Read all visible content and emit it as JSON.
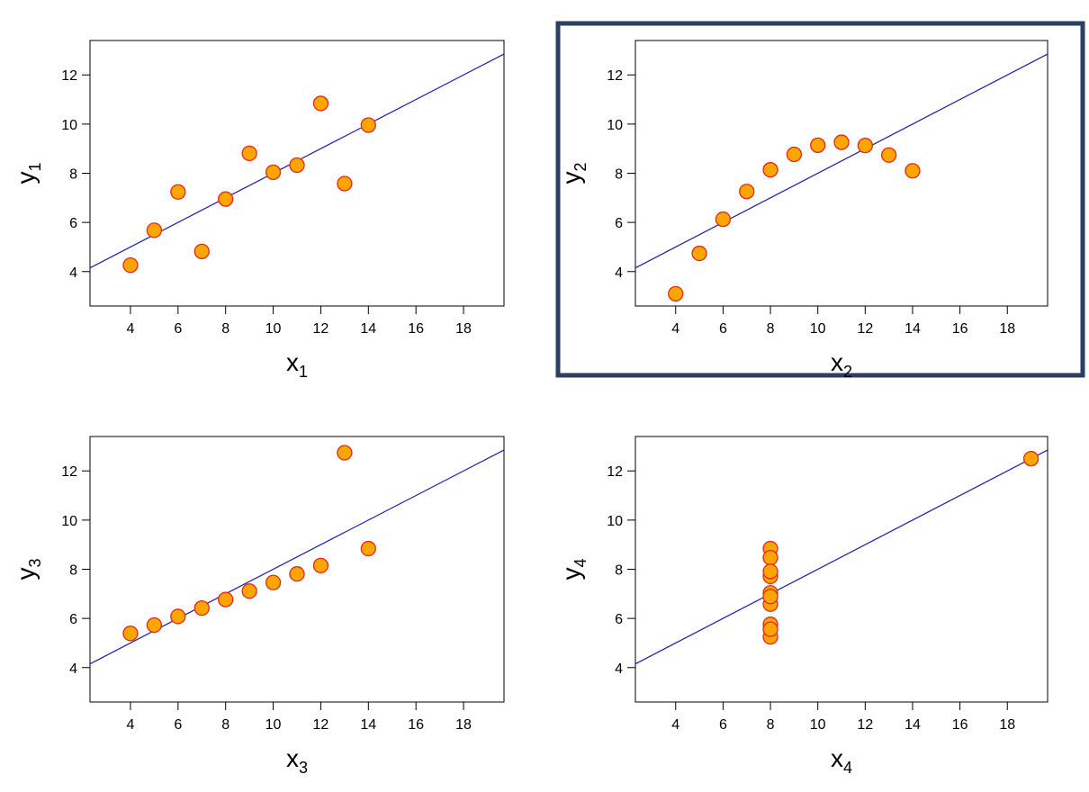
{
  "chart_data": [
    {
      "type": "scatter",
      "xlabel": "x",
      "xlabel_sub": "1",
      "ylabel": "y",
      "ylabel_sub": "1",
      "xlim": [
        2.3,
        19.7
      ],
      "ylim": [
        2.6,
        13.4
      ],
      "xticks": [
        "4",
        "6",
        "8",
        "10",
        "12",
        "14",
        "16",
        "18"
      ],
      "yticks": [
        "4",
        "6",
        "8",
        "10",
        "12"
      ],
      "highlighted": false,
      "points": [
        [
          10,
          8.04
        ],
        [
          8,
          6.95
        ],
        [
          13,
          7.58
        ],
        [
          9,
          8.81
        ],
        [
          11,
          8.33
        ],
        [
          14,
          9.96
        ],
        [
          6,
          7.24
        ],
        [
          4,
          4.26
        ],
        [
          12,
          10.84
        ],
        [
          7,
          4.82
        ],
        [
          5,
          5.68
        ]
      ],
      "fit": {
        "intercept": 3.0,
        "slope": 0.5
      }
    },
    {
      "type": "scatter",
      "xlabel": "x",
      "xlabel_sub": "2",
      "ylabel": "y",
      "ylabel_sub": "2",
      "xlim": [
        2.3,
        19.7
      ],
      "ylim": [
        2.6,
        13.4
      ],
      "xticks": [
        "4",
        "6",
        "8",
        "10",
        "12",
        "14",
        "16",
        "18"
      ],
      "yticks": [
        "4",
        "6",
        "8",
        "10",
        "12"
      ],
      "highlighted": true,
      "points": [
        [
          10,
          9.14
        ],
        [
          8,
          8.14
        ],
        [
          13,
          8.74
        ],
        [
          9,
          8.77
        ],
        [
          11,
          9.26
        ],
        [
          14,
          8.1
        ],
        [
          6,
          6.13
        ],
        [
          4,
          3.1
        ],
        [
          12,
          9.13
        ],
        [
          7,
          7.26
        ],
        [
          5,
          4.74
        ]
      ],
      "fit": {
        "intercept": 3.0,
        "slope": 0.5
      }
    },
    {
      "type": "scatter",
      "xlabel": "x",
      "xlabel_sub": "3",
      "ylabel": "y",
      "ylabel_sub": "3",
      "xlim": [
        2.3,
        19.7
      ],
      "ylim": [
        2.6,
        13.4
      ],
      "xticks": [
        "4",
        "6",
        "8",
        "10",
        "12",
        "14",
        "16",
        "18"
      ],
      "yticks": [
        "4",
        "6",
        "8",
        "10",
        "12"
      ],
      "highlighted": false,
      "points": [
        [
          10,
          7.46
        ],
        [
          8,
          6.77
        ],
        [
          13,
          12.74
        ],
        [
          9,
          7.11
        ],
        [
          11,
          7.81
        ],
        [
          14,
          8.84
        ],
        [
          6,
          6.08
        ],
        [
          4,
          5.39
        ],
        [
          12,
          8.15
        ],
        [
          7,
          6.42
        ],
        [
          5,
          5.73
        ]
      ],
      "fit": {
        "intercept": 3.0,
        "slope": 0.5
      }
    },
    {
      "type": "scatter",
      "xlabel": "x",
      "xlabel_sub": "4",
      "ylabel": "y",
      "ylabel_sub": "4",
      "xlim": [
        2.3,
        19.7
      ],
      "ylim": [
        2.6,
        13.4
      ],
      "xticks": [
        "4",
        "6",
        "8",
        "10",
        "12",
        "14",
        "16",
        "18"
      ],
      "yticks": [
        "4",
        "6",
        "8",
        "10",
        "12"
      ],
      "highlighted": false,
      "points": [
        [
          8,
          6.58
        ],
        [
          8,
          5.76
        ],
        [
          8,
          7.71
        ],
        [
          8,
          8.84
        ],
        [
          8,
          8.47
        ],
        [
          8,
          7.04
        ],
        [
          8,
          5.25
        ],
        [
          19,
          12.5
        ],
        [
          8,
          5.56
        ],
        [
          8,
          7.91
        ],
        [
          8,
          6.89
        ]
      ],
      "fit": {
        "intercept": 3.0,
        "slope": 0.5
      }
    }
  ],
  "colors": {
    "point_fill": "#FFA500",
    "point_stroke": "#E8261A",
    "fit_line": "#1A1AB0",
    "highlight_border": "#2B3F63",
    "axis": "#000000"
  }
}
